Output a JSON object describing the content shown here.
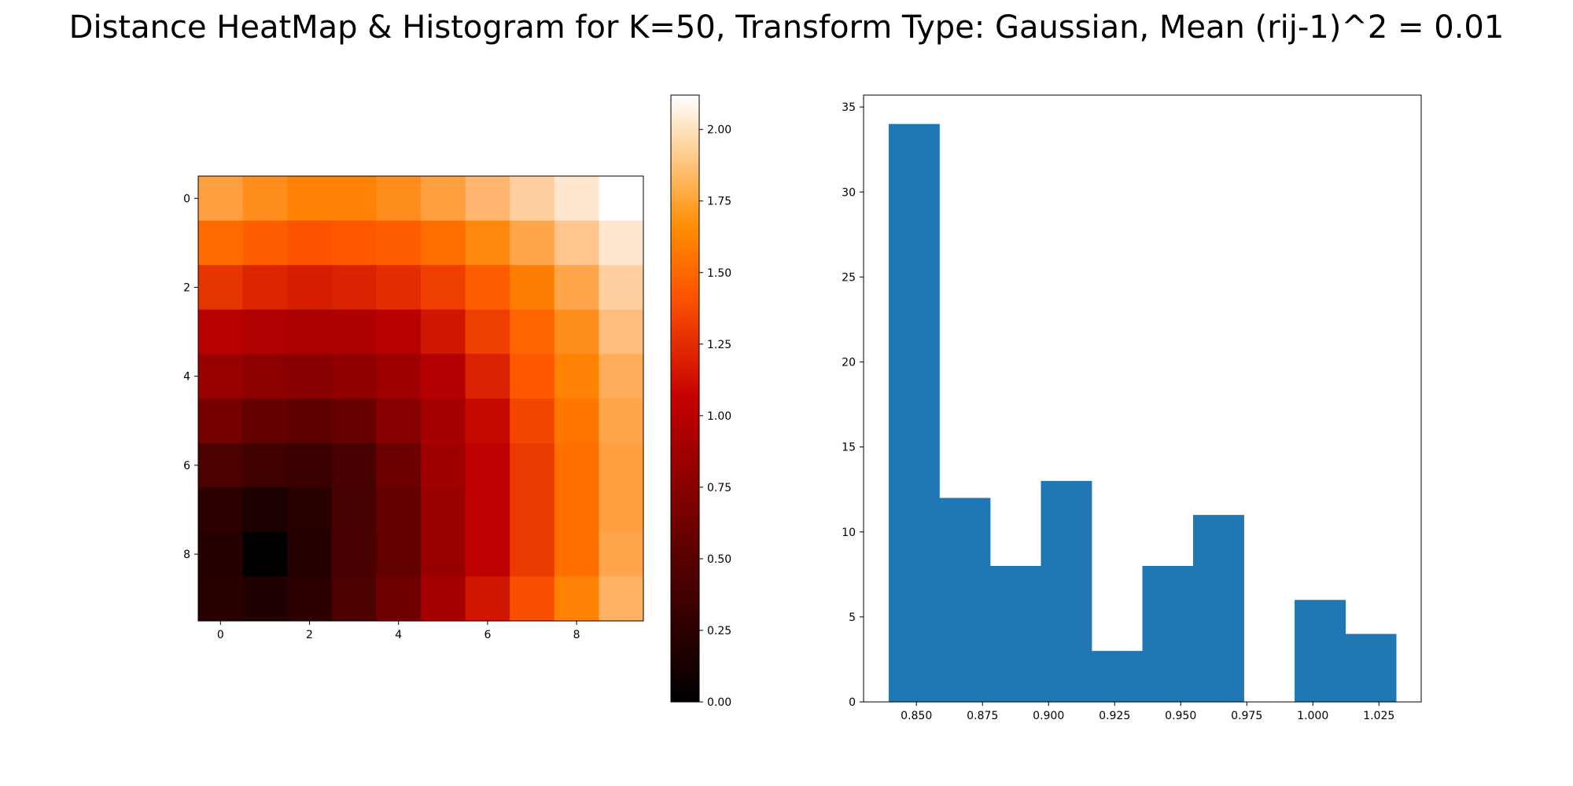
{
  "title": "Distance HeatMap & Histogram for K=50, Transform Type: Gaussian, Mean (rij-1)^2 = 0.01",
  "chart_data": [
    {
      "type": "heatmap",
      "colormap": "gist_heat",
      "rows": 10,
      "cols": 10,
      "x_ticks": [
        "0",
        "2",
        "4",
        "6",
        "8"
      ],
      "y_ticks": [
        "0",
        "2",
        "4",
        "6",
        "8"
      ],
      "values": [
        [
          1.72,
          1.65,
          1.6,
          1.6,
          1.65,
          1.72,
          1.82,
          1.92,
          2.02,
          2.12
        ],
        [
          1.5,
          1.45,
          1.4,
          1.42,
          1.45,
          1.52,
          1.62,
          1.75,
          1.88,
          2.02
        ],
        [
          1.28,
          1.22,
          1.18,
          1.2,
          1.25,
          1.32,
          1.45,
          1.58,
          1.75,
          1.92
        ],
        [
          1.02,
          0.98,
          0.95,
          0.96,
          1.02,
          1.15,
          1.32,
          1.48,
          1.65,
          1.85
        ],
        [
          0.85,
          0.78,
          0.76,
          0.8,
          0.88,
          1.0,
          1.2,
          1.42,
          1.6,
          1.78
        ],
        [
          0.65,
          0.55,
          0.52,
          0.58,
          0.75,
          0.92,
          1.1,
          1.35,
          1.55,
          1.75
        ],
        [
          0.42,
          0.35,
          0.32,
          0.4,
          0.6,
          0.88,
          1.05,
          1.3,
          1.52,
          1.72
        ],
        [
          0.25,
          0.15,
          0.22,
          0.38,
          0.55,
          0.85,
          1.05,
          1.3,
          1.52,
          1.72
        ],
        [
          0.2,
          0.0,
          0.2,
          0.4,
          0.55,
          0.85,
          1.05,
          1.3,
          1.52,
          1.75
        ],
        [
          0.22,
          0.18,
          0.25,
          0.42,
          0.62,
          0.92,
          1.15,
          1.38,
          1.6,
          1.8
        ]
      ],
      "colorbar": {
        "range": [
          0,
          2.12
        ],
        "ticks": [
          "0.00",
          "0.25",
          "0.50",
          "0.75",
          "1.00",
          "1.25",
          "1.50",
          "1.75",
          "2.00"
        ]
      }
    },
    {
      "type": "bar",
      "subtype": "histogram",
      "color": "#1f77b4",
      "bin_edges": [
        0.8395,
        0.8587,
        0.8779,
        0.8971,
        0.9163,
        0.9355,
        0.9547,
        0.9739,
        0.9931,
        1.0123,
        1.0315
      ],
      "counts": [
        34,
        12,
        8,
        13,
        3,
        8,
        11,
        0,
        6,
        4
      ],
      "xlim": [
        0.83,
        1.041
      ],
      "ylim": [
        0,
        35.7
      ],
      "x_ticks": [
        "0.850",
        "0.875",
        "0.900",
        "0.925",
        "0.950",
        "0.975",
        "1.000",
        "1.025"
      ],
      "y_ticks": [
        "0",
        "5",
        "10",
        "15",
        "20",
        "25",
        "30",
        "35"
      ]
    }
  ]
}
